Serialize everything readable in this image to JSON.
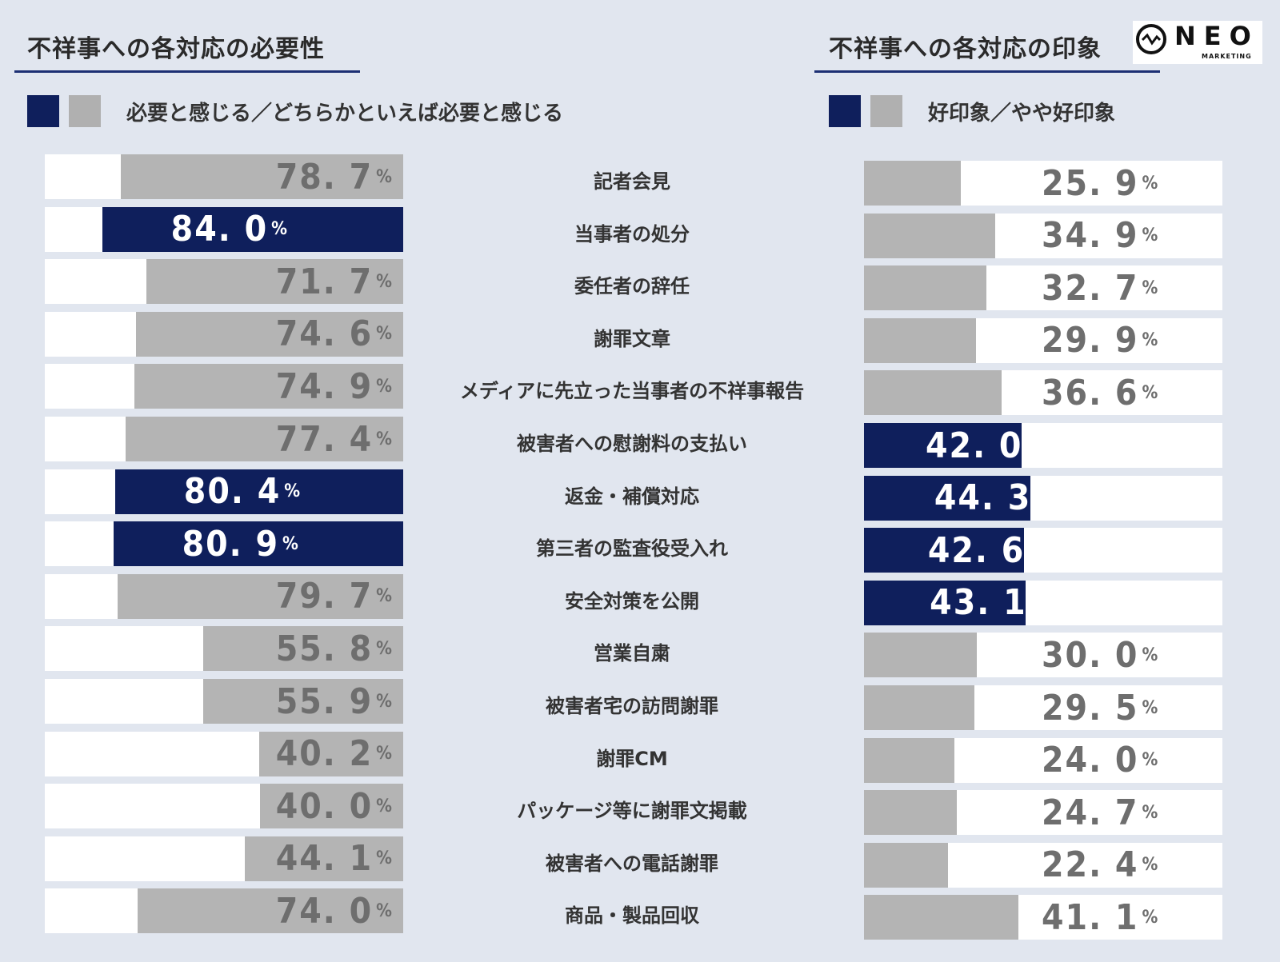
{
  "left_title": "不祥事への各対応の必要性",
  "right_title": "不祥事への各対応の印象",
  "left_legend": "必要と感じる／どちらかといえば必要と感じる",
  "right_legend": "好印象／やや好印象",
  "logo": {
    "text": "NEO",
    "sub": "MARKETING"
  },
  "colors": {
    "navy": "#0f1f5c",
    "gray": "#b4b4b4",
    "background": "#e1e6ef"
  },
  "chart_data": [
    {
      "type": "bar",
      "orientation": "horizontal",
      "title": "不祥事への各対応の必要性",
      "legend": "必要と感じる／どちらかといえば必要と感じる",
      "unit": "%",
      "categories": [
        "記者会見",
        "当事者の処分",
        "委任者の辞任",
        "謝罪文章",
        "メディアに先立った当事者の不祥事報告",
        "被害者への慰謝料の支払い",
        "返金・補償対応",
        "第三者の監査役受入れ",
        "安全対策を公開",
        "営業自粛",
        "被害者宅の訪問謝罪",
        "謝罪CM",
        "パッケージ等に謝罪文掲載",
        "被害者への電話謝罪",
        "商品・製品回収"
      ],
      "values": [
        78.7,
        84.0,
        71.7,
        74.6,
        74.9,
        77.4,
        80.4,
        80.9,
        79.7,
        55.8,
        55.9,
        40.2,
        40.0,
        44.1,
        74.0
      ],
      "labels": [
        "78. 7",
        "84. 0",
        "71. 7",
        "74. 6",
        "74. 9",
        "77. 4",
        "80. 4",
        "80. 9",
        "79. 7",
        "55. 8",
        "55. 9",
        "40. 2",
        "40. 0",
        "44. 1",
        "74. 0"
      ],
      "highlight": [
        false,
        true,
        false,
        false,
        false,
        false,
        true,
        true,
        false,
        false,
        false,
        false,
        false,
        false,
        false
      ]
    },
    {
      "type": "bar",
      "orientation": "horizontal",
      "title": "不祥事への各対応の印象",
      "legend": "好印象／やや好印象",
      "unit": "%",
      "categories": [
        "記者会見",
        "当事者の処分",
        "委任者の辞任",
        "謝罪文章",
        "メディアに先立った当事者の不祥事報告",
        "被害者への慰謝料の支払い",
        "返金・補償対応",
        "第三者の監査役受入れ",
        "安全対策を公開",
        "営業自粛",
        "被害者宅の訪問謝罪",
        "謝罪CM",
        "パッケージ等に謝罪文掲載",
        "被害者への電話謝罪",
        "商品・製品回収"
      ],
      "values": [
        25.9,
        34.9,
        32.7,
        29.9,
        36.6,
        42.0,
        44.3,
        42.6,
        43.1,
        30.0,
        29.5,
        24.0,
        24.7,
        22.4,
        41.1
      ],
      "labels": [
        "25. 9",
        "34. 9",
        "32. 7",
        "29. 9",
        "36. 6",
        "42. 0",
        "44. 3",
        "42. 6",
        "43. 1",
        "30. 0",
        "29. 5",
        "24. 0",
        "24. 7",
        "22. 4",
        "41. 1"
      ],
      "highlight": [
        false,
        false,
        false,
        false,
        false,
        true,
        true,
        true,
        true,
        false,
        false,
        false,
        false,
        false,
        false
      ]
    }
  ]
}
